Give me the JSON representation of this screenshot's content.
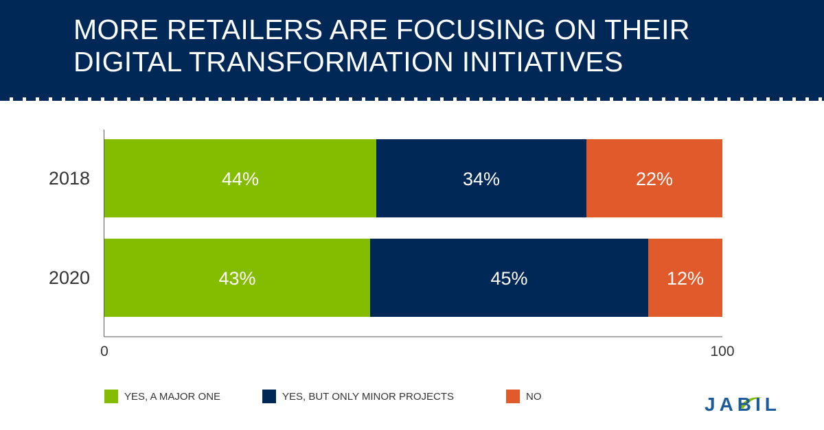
{
  "header": {
    "title": "MORE RETAILERS ARE FOCUSING ON THEIR DIGITAL TRANSFORMATION INITIATIVES"
  },
  "colors": {
    "header_bg": "#002856",
    "major": "#84bd00",
    "minor": "#002856",
    "no": "#e05a2b"
  },
  "chart_data": {
    "type": "bar",
    "orientation": "horizontal",
    "stacked": true,
    "title": "",
    "xlabel": "",
    "ylabel": "",
    "xlim": [
      0,
      100
    ],
    "x_ticks": [
      "0",
      "100"
    ],
    "grid": false,
    "categories": [
      "2018",
      "2020"
    ],
    "series": [
      {
        "name": "YES, A MAJOR ONE",
        "color": "#84bd00",
        "values": [
          44,
          43
        ],
        "labels": [
          "44%",
          "43%"
        ]
      },
      {
        "name": "YES, BUT ONLY MINOR PROJECTS",
        "color": "#002856",
        "values": [
          34,
          45
        ],
        "labels": [
          "34%",
          "45%"
        ]
      },
      {
        "name": "NO",
        "color": "#e05a2b",
        "values": [
          22,
          12
        ],
        "labels": [
          "22%",
          "12%"
        ]
      }
    ],
    "legend_position": "bottom"
  },
  "logo": {
    "text": "JABIL",
    "icon": "jabil-swoosh-icon"
  }
}
